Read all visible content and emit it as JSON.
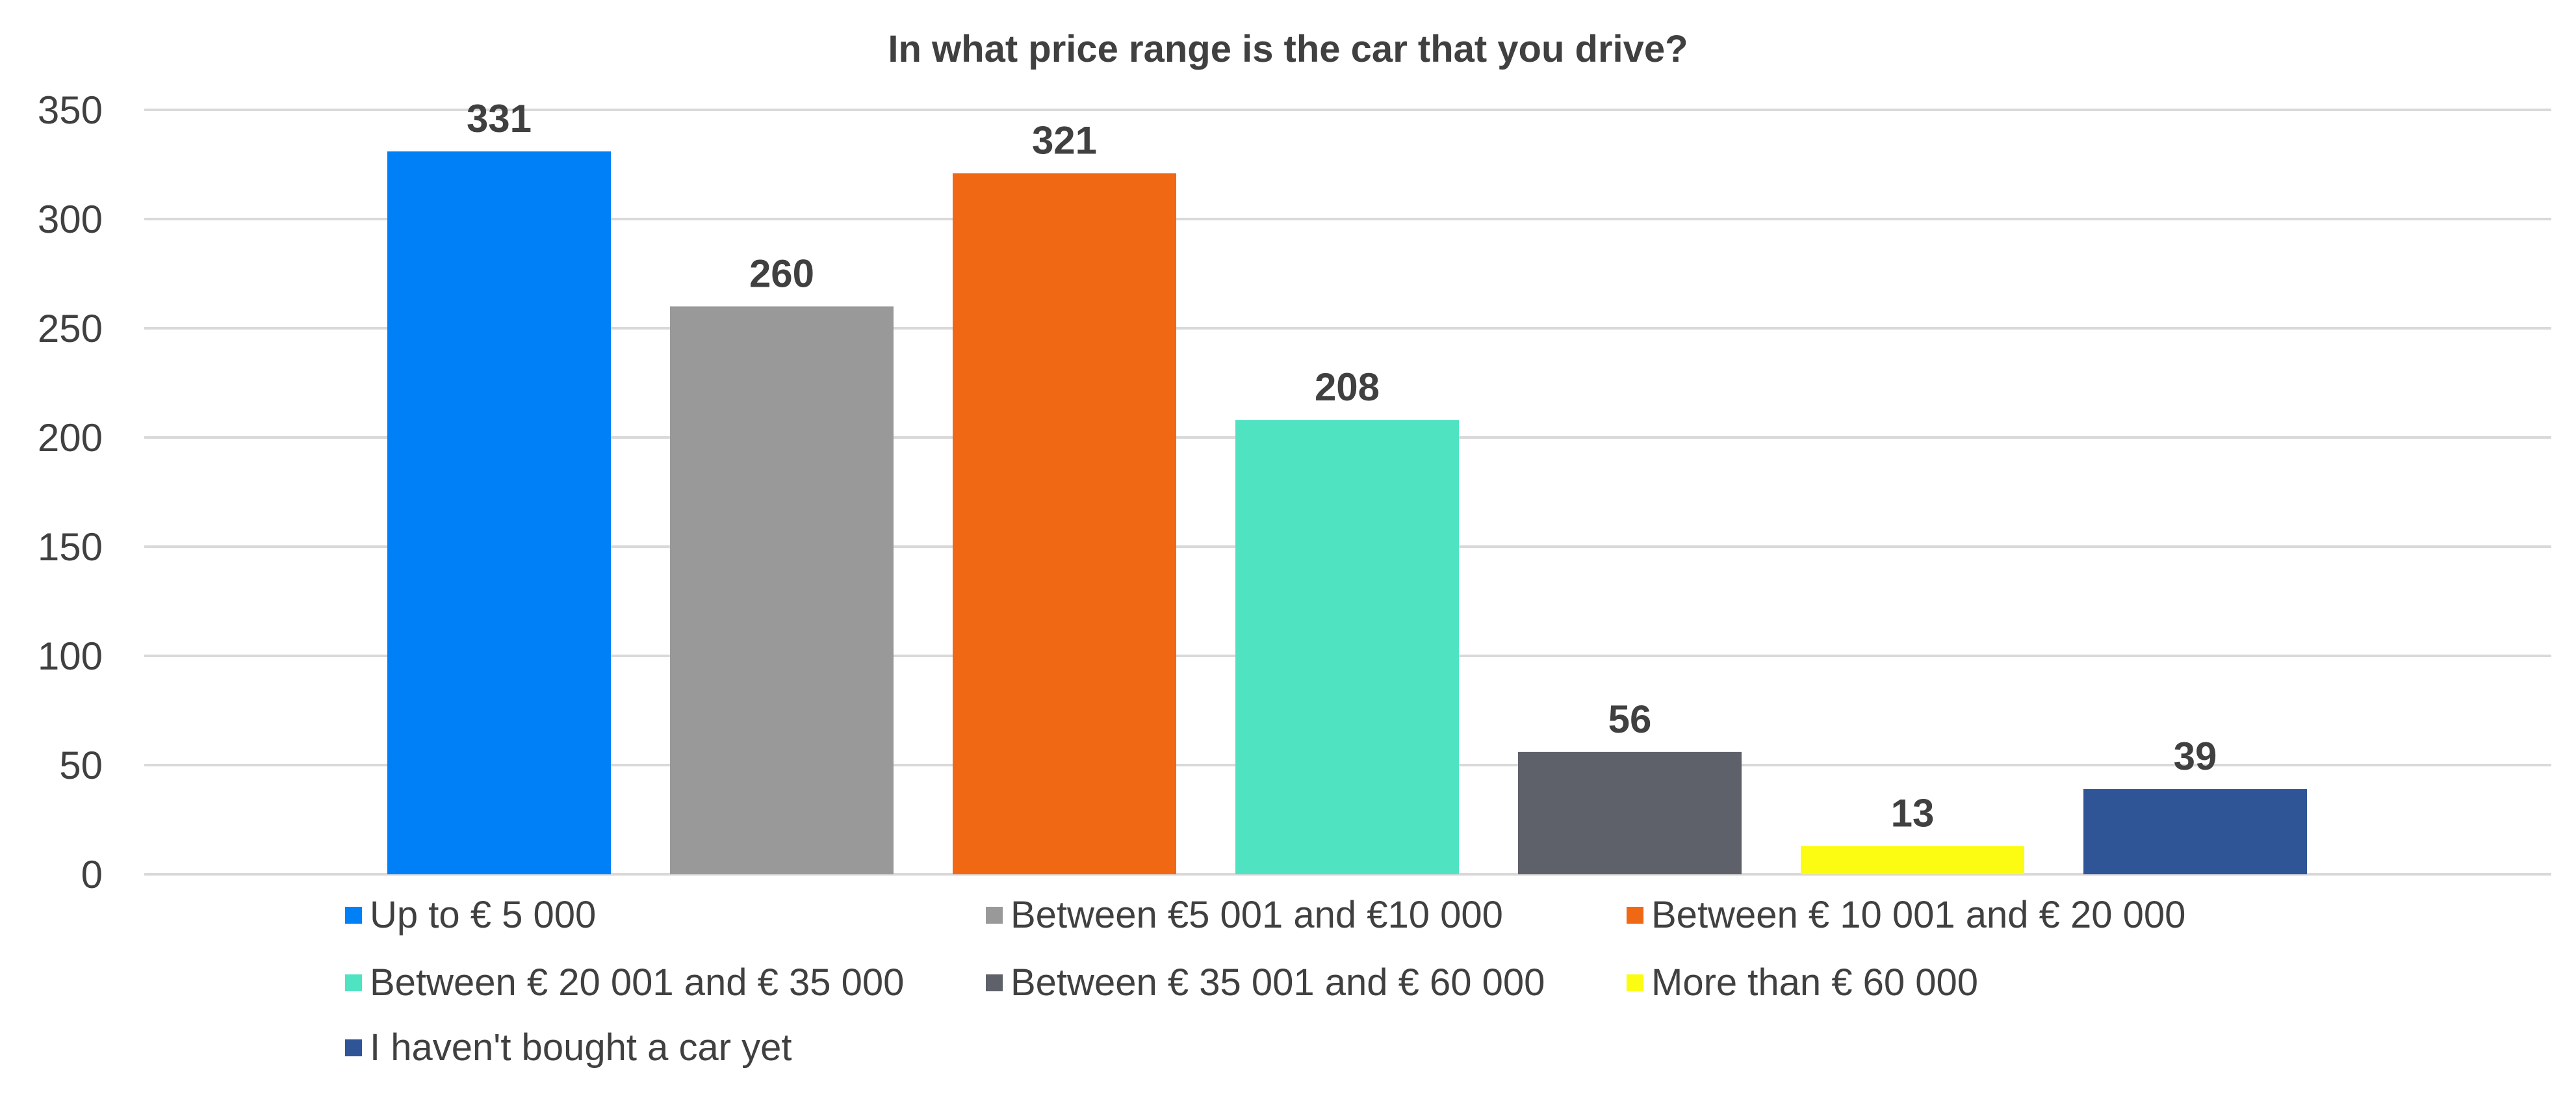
{
  "chart_data": {
    "type": "bar",
    "title": "In what price range is the car that you drive?",
    "xlabel": "",
    "ylabel": "",
    "ylim": [
      0,
      350
    ],
    "yticks": [
      0,
      50,
      100,
      150,
      200,
      250,
      300,
      350
    ],
    "grid": true,
    "legend_position": "bottom",
    "categories": [
      "Up to € 5 000",
      "Between €5 001 and €10 000",
      "Between € 10 001 and € 20 000",
      "Between € 20 001 and € 35 000",
      "Between € 35 001 and € 60 000",
      "More than € 60 000",
      "I haven't bought a car yet"
    ],
    "values": [
      331,
      260,
      321,
      208,
      56,
      13,
      39
    ],
    "colors": [
      "#0080F6",
      "#999999",
      "#F06813",
      "#50E3C2",
      "#5E6169",
      "#FCFC12",
      "#2F5597"
    ],
    "data_labels": [
      "331",
      "260",
      "321",
      "208",
      "56",
      "13",
      "39"
    ]
  }
}
